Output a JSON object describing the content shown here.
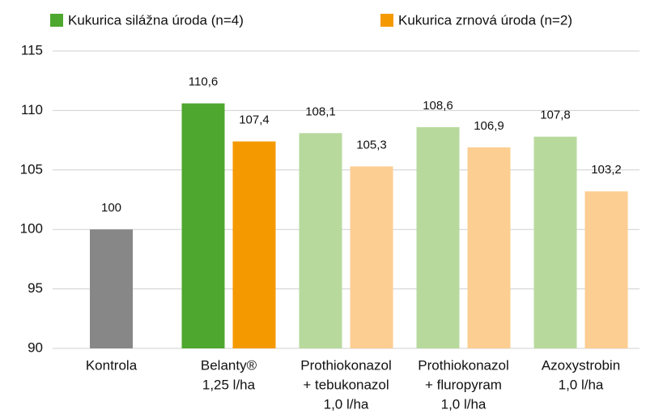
{
  "chart_data": {
    "type": "bar",
    "categories": [
      [
        "Kontrola"
      ],
      [
        "Belanty®",
        "1,25 l/ha"
      ],
      [
        "Prothiokonazol",
        "+ tebukonazol",
        "1,0 l/ha"
      ],
      [
        "Prothiokonazol",
        "+ fluropyram",
        "1,0 l/ha"
      ],
      [
        "Azoxystrobin",
        "1,0 l/ha"
      ]
    ],
    "series": [
      {
        "name": "Kukurica silážna úroda (n=4)",
        "color": "#4ea72e",
        "colors": [
          "#878787",
          "#4ea72e",
          "#b8d99c",
          "#b8d99c",
          "#b8d99c"
        ],
        "values": [
          100,
          110.6,
          108.1,
          108.6,
          107.8
        ],
        "value_labels": [
          "100",
          "110,6",
          "108,1",
          "108,6",
          "107,8"
        ]
      },
      {
        "name": "Kukurica zrnová úroda (n=2)",
        "color": "#f49a00",
        "colors": [
          null,
          "#f49a00",
          "#fcce91",
          "#fcce91",
          "#fcce91"
        ],
        "values": [
          null,
          107.4,
          105.3,
          106.9,
          103.2
        ],
        "value_labels": [
          null,
          "107,4",
          "105,3",
          "106,9",
          "103,2"
        ]
      }
    ],
    "ylim": [
      90,
      115
    ],
    "yticks": [
      90,
      95,
      100,
      105,
      110,
      115
    ],
    "grid": true
  }
}
